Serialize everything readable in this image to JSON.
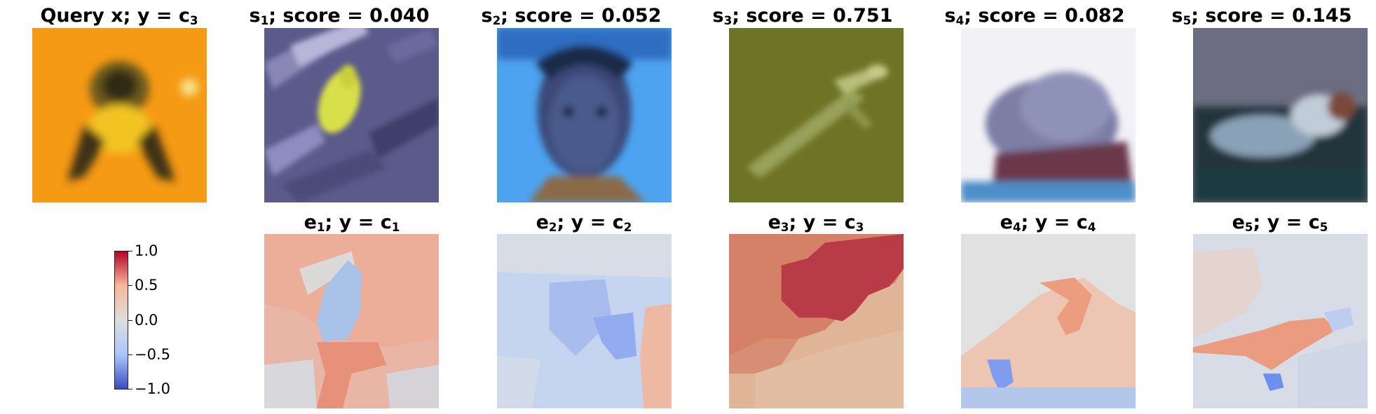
{
  "top_row": [
    {
      "title": {
        "a": "Query x; y = c",
        "sub": "3",
        "b": ""
      },
      "image": "query-bird-orange-background"
    },
    {
      "title": {
        "a": "s",
        "sub": "1",
        "b": "; score = 0.040"
      },
      "image": "yellow-green-bird-purple-background"
    },
    {
      "title": {
        "a": "s",
        "sub": "2",
        "b": "; score = 0.052"
      },
      "image": "child-face-blue-background"
    },
    {
      "title": {
        "a": "s",
        "sub": "3",
        "b": "; score = 0.751"
      },
      "image": "lizard-green-background"
    },
    {
      "title": {
        "a": "s",
        "sub": "4",
        "b": "; score = 0.082"
      },
      "image": "rodent-white-background"
    },
    {
      "title": {
        "a": "s",
        "sub": "5",
        "b": "; score = 0.145"
      },
      "image": "animal-water-dark-background"
    }
  ],
  "bottom_row": [
    {
      "title": {
        "a": "e",
        "sub": "1",
        "b": "; y = c",
        "sub2": "1"
      },
      "image": "explanation-heatmap-1"
    },
    {
      "title": {
        "a": "e",
        "sub": "2",
        "b": "; y = c",
        "sub2": "2"
      },
      "image": "explanation-heatmap-2"
    },
    {
      "title": {
        "a": "e",
        "sub": "3",
        "b": "; y = c",
        "sub2": "3"
      },
      "image": "explanation-heatmap-3"
    },
    {
      "title": {
        "a": "e",
        "sub": "4",
        "b": "; y = c",
        "sub2": "4"
      },
      "image": "explanation-heatmap-4"
    },
    {
      "title": {
        "a": "e",
        "sub": "5",
        "b": "; y = c",
        "sub2": "5"
      },
      "image": "explanation-heatmap-5"
    }
  ],
  "colorbar": {
    "colormap": "coolwarm",
    "colors": [
      "#3b4cc0",
      "#aac7fd",
      "#dddddd",
      "#f7b89c",
      "#b40426"
    ],
    "ticks": [
      "1.0",
      "0.5",
      "0.0",
      "−0.5",
      "−1.0"
    ]
  }
}
